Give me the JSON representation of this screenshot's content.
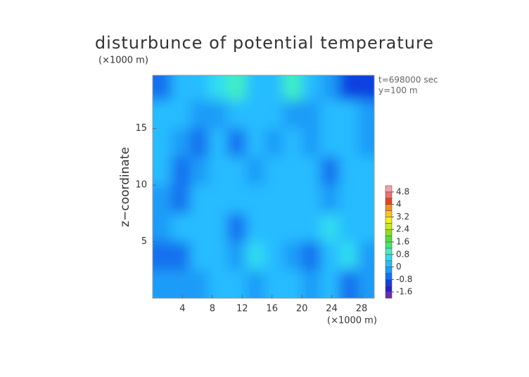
{
  "chart_data": {
    "type": "heatmap",
    "title": "disturbunce of potential temperature",
    "xlabel": "(×1000 m)",
    "ylabel": "z−coordinate",
    "yunit": "(×1000 m)",
    "annotations": [
      "t=698000 sec",
      "y=100 m"
    ],
    "x": [
      1.25,
      3.75,
      6.25,
      8.75,
      11.25,
      13.75,
      16.25,
      18.75,
      21.25,
      23.75,
      26.25,
      28.75
    ],
    "y": [
      1.25,
      3.75,
      6.25,
      8.75,
      11.25,
      13.75,
      16.25,
      18.75
    ],
    "z": [
      [
        -0.2,
        -0.2,
        -0.1,
        0.2,
        0.1,
        -0.3,
        0.1,
        0.0,
        -0.2,
        0.1,
        -0.5,
        -0.2
      ],
      [
        -0.5,
        -0.6,
        0.0,
        0.2,
        -0.4,
        0.4,
        0.2,
        -0.2,
        -0.6,
        0.2,
        0.4,
        -0.3
      ],
      [
        -0.3,
        0.1,
        0.2,
        0.3,
        -0.5,
        0.1,
        0.0,
        0.2,
        0.1,
        0.7,
        0.3,
        0.0
      ],
      [
        -0.2,
        -0.5,
        0.1,
        0.2,
        0.3,
        0.0,
        0.1,
        0.0,
        0.2,
        -0.4,
        0.2,
        0.1
      ],
      [
        0.1,
        -0.6,
        -0.3,
        0.1,
        0.2,
        -0.2,
        0.1,
        0.2,
        0.0,
        -0.5,
        0.3,
        0.0
      ],
      [
        0.2,
        -0.1,
        -0.5,
        0.2,
        -0.6,
        0.2,
        -0.1,
        0.1,
        -0.3,
        0.2,
        0.1,
        -0.2
      ],
      [
        0.0,
        0.1,
        -0.3,
        -0.1,
        0.2,
        0.3,
        0.0,
        -0.2,
        -0.1,
        0.2,
        0.1,
        -0.4
      ],
      [
        -0.7,
        0.0,
        0.2,
        0.5,
        0.9,
        0.1,
        0.3,
        0.8,
        0.0,
        -0.3,
        -1.0,
        -1.2
      ]
    ],
    "xlim": [
      0,
      29.7
    ],
    "ylim": [
      0,
      19.7
    ],
    "xticks": [
      4,
      8,
      12,
      16,
      20,
      24,
      28
    ],
    "yticks": [
      5,
      10,
      15
    ],
    "colorbar": {
      "levels": [
        -2,
        -1.6,
        -1.2,
        -0.8,
        -0.4,
        0,
        0.4,
        0.8,
        1.2,
        1.6,
        2,
        2.4,
        2.8,
        3.2,
        3.6,
        4,
        4.4,
        4.8,
        5.2
      ],
      "colors": [
        "#6a2ab8",
        "#2a20c8",
        "#1040e0",
        "#1470ee",
        "#1e9cf8",
        "#28bcff",
        "#30dcf0",
        "#40f0c0",
        "#40e870",
        "#50e030",
        "#90e020",
        "#c8e820",
        "#f0f020",
        "#f8c818",
        "#f89018",
        "#f04018",
        "#f07070",
        "#f8a0a8"
      ],
      "ticks": [
        -1.6,
        -0.8,
        0,
        0.8,
        1.6,
        2.4,
        3.2,
        4,
        4.8
      ]
    }
  }
}
